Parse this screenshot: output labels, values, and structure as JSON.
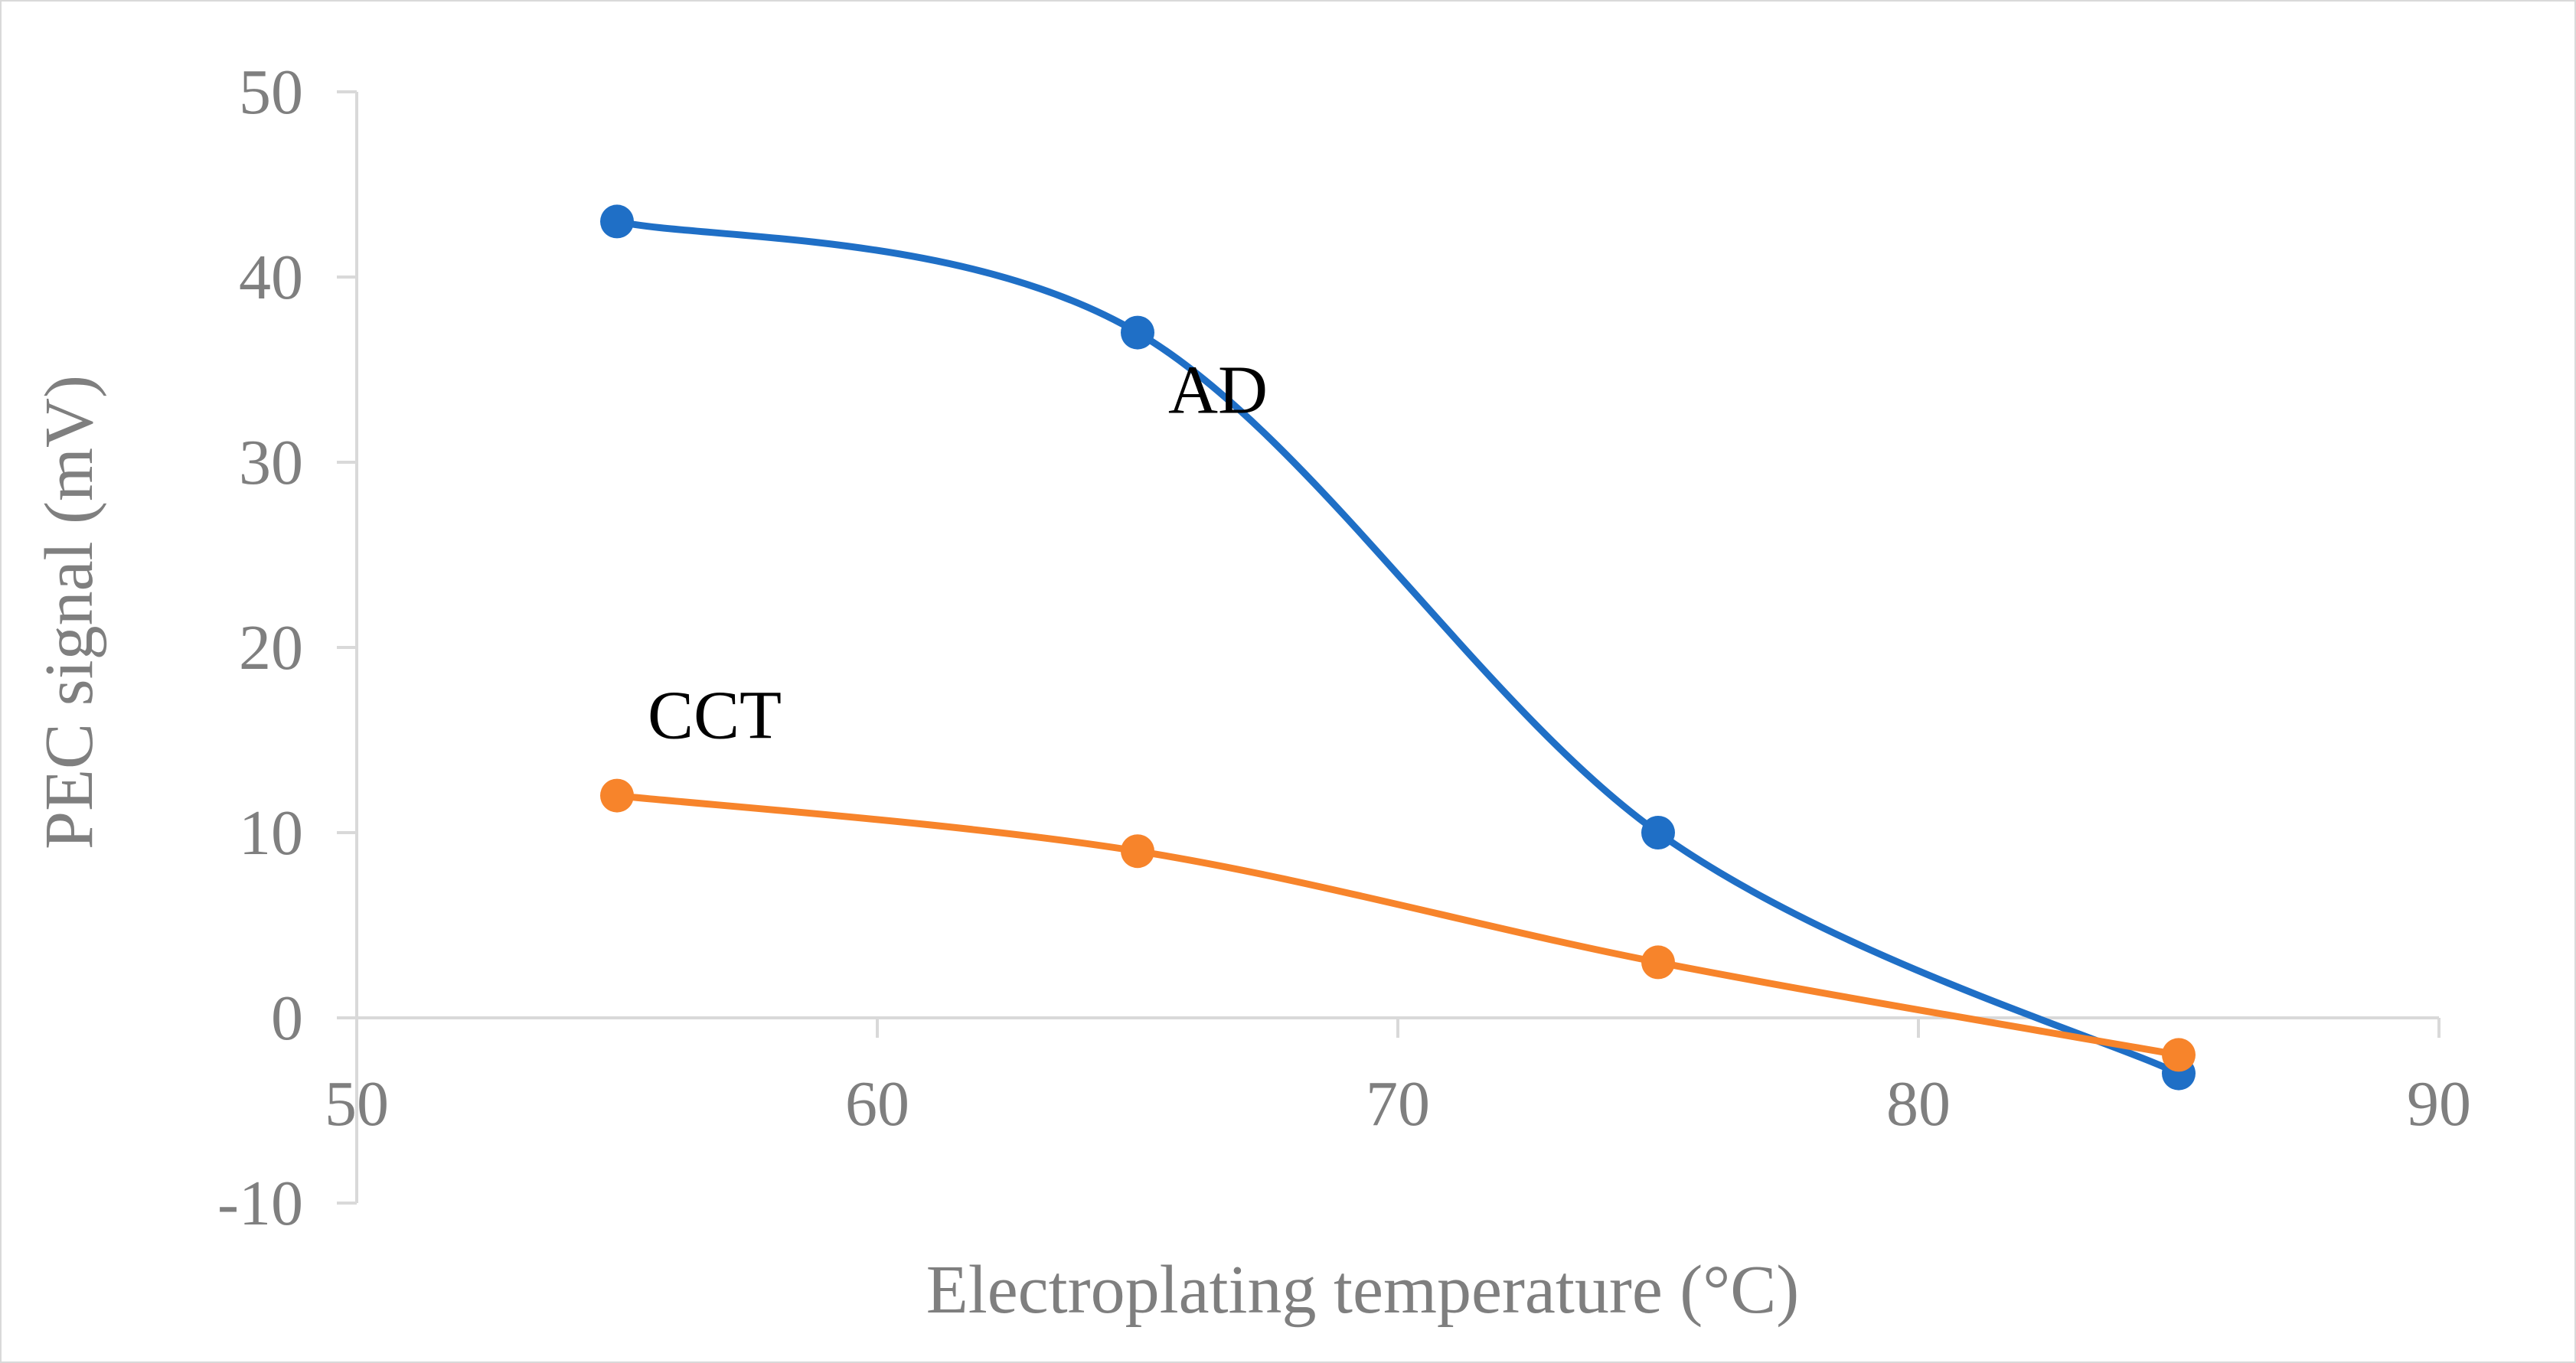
{
  "chart_data": {
    "type": "line",
    "title": "",
    "xlabel": "Electroplating temperature (°C)",
    "ylabel": "PEC signal (mV)",
    "xlim": [
      50,
      90
    ],
    "ylim": [
      -10,
      50
    ],
    "x_ticks": [
      "50",
      "60",
      "70",
      "80",
      "90"
    ],
    "y_ticks": [
      "-10",
      "0",
      "10",
      "20",
      "30",
      "40",
      "50"
    ],
    "grid": false,
    "legend": "none",
    "smooth": true,
    "series": [
      {
        "name": "AD",
        "color": "#1f6fc6",
        "x": [
          55,
          65,
          75,
          85
        ],
        "y": [
          43,
          37,
          10,
          -3
        ]
      },
      {
        "name": "CCT",
        "color": "#f7842b",
        "x": [
          55,
          65,
          75,
          85
        ],
        "y": [
          12,
          9,
          3,
          -2
        ]
      }
    ],
    "annotations": [
      {
        "text": "AD",
        "series": 0,
        "near_x": 68
      },
      {
        "text": "CCT",
        "series": 1,
        "near_x": 57
      }
    ]
  }
}
